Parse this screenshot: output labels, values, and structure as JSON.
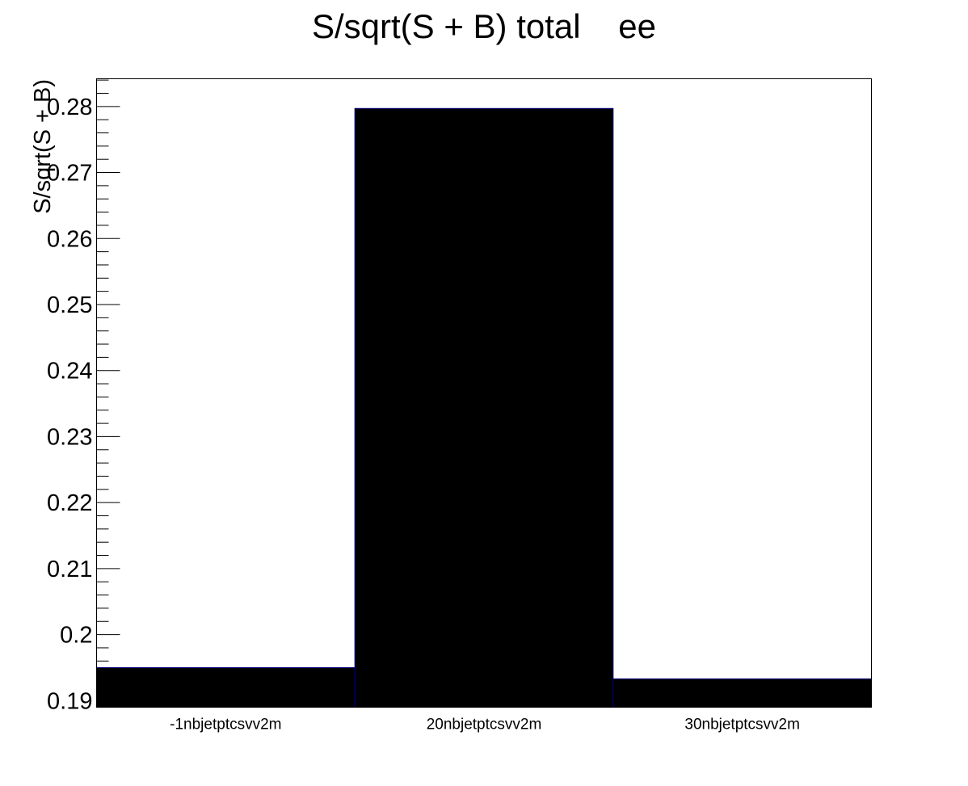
{
  "chart_data": {
    "type": "bar",
    "title": "S/sqrt(S + B) total    ee",
    "xlabel": "",
    "ylabel": "S/sqrt(S + B)",
    "categories": [
      "-1nbjetptcsvv2m",
      "20nbjetptcsvv2m",
      "30nbjetptcsvv2m"
    ],
    "values": [
      0.195,
      0.2797,
      0.1933
    ],
    "ylim": [
      0.189,
      0.2842
    ],
    "yticks": [
      {
        "value": 0.19,
        "label": "0.19"
      },
      {
        "value": 0.2,
        "label": "0.2"
      },
      {
        "value": 0.21,
        "label": "0.21"
      },
      {
        "value": 0.22,
        "label": "0.22"
      },
      {
        "value": 0.23,
        "label": "0.23"
      },
      {
        "value": 0.24,
        "label": "0.24"
      },
      {
        "value": 0.25,
        "label": "0.25"
      },
      {
        "value": 0.26,
        "label": "0.26"
      },
      {
        "value": 0.27,
        "label": "0.27"
      },
      {
        "value": 0.28,
        "label": "0.28"
      }
    ],
    "grid": false,
    "bar_color": "#000000",
    "bar_edge_color": "#000080"
  }
}
